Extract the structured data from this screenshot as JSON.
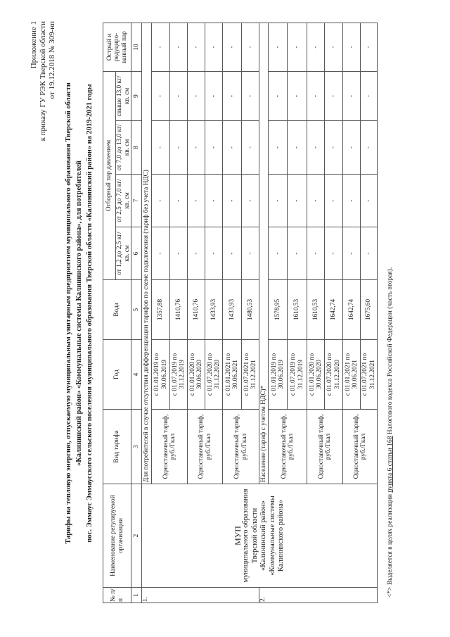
{
  "appendix": {
    "line1": "Приложение 1",
    "line2": "к приказу ГУ РЭК Тверской области",
    "line3": "от 19.12.2018 № 309-нп"
  },
  "title": {
    "line1": "Тарифы на тепловую энергию, отпускаемую муниципальным унитарным предприятием муниципального образования Тверской области",
    "line2": "«Калининский район» «Коммунальные системы Калининского района», для потребителей",
    "line3": "пос. Эммаус Эммаусского сельского поселения муниципального образования Тверской области «Калининский район» на 2019-2021 годы"
  },
  "table": {
    "headers": {
      "num": "№ п/ п",
      "org": "Наименование регулируемой организации",
      "tariff_type": "Вид тарифа",
      "year": "Год",
      "water": "Вода",
      "steam_group": "Отборный пар давлением",
      "p1": "от 1,2 до 2,5 кг/кв. см",
      "p2": "от 2,5 до 7,0 кг/кв. см",
      "p3": "от 7,0 до 13,0 кг/кв. см",
      "p4": "свыше 13,0 кг/кв. см",
      "sharp": "Острый и редуциро-ванный пар"
    },
    "col_numbers": [
      "1",
      "2",
      "3",
      "4",
      "5",
      "6",
      "7",
      "8",
      "9",
      "10"
    ],
    "org_name": {
      "l1": "МУП",
      "l2": "муниципального образования Тверской области «Калининский район» «Коммунальные системы Калининского района»"
    },
    "sections": [
      {
        "num": "1.",
        "title": "Для потребителей в случае отсутствия дифференциации тарифов по схеме подключения (тариф без учета НДС)",
        "rows": [
          {
            "tariff": "Одноставочный тариф, руб./Гкал",
            "period": "с 01.01.2019 по 30.06.2019",
            "values": [
              "1357,88",
              "-",
              "-",
              "-",
              "-",
              "-"
            ]
          },
          {
            "period": "с 01.07.2019 по 31.12.2019",
            "values": [
              "1410,76",
              "-",
              "-",
              "-",
              "-",
              "-"
            ]
          },
          {
            "tariff": "Одноставочный тариф, руб./Гкал",
            "period": "с 01.01.2020 по 30.06.2020",
            "values": [
              "1410,76",
              "-",
              "-",
              "-",
              "-",
              "-"
            ]
          },
          {
            "period": "с 01.07.2020 по 31.12.2020",
            "values": [
              "1433,93",
              "-",
              "-",
              "-",
              "-",
              "-"
            ]
          },
          {
            "tariff": "Одноставочный тариф, руб./Гкал",
            "period": "с 01.01.2021 по 30.06.2021",
            "values": [
              "1433,93",
              "-",
              "-",
              "-",
              "-",
              "-"
            ]
          },
          {
            "period": "с 01.07.2021 по 31.12.2021",
            "values": [
              "1480,53",
              "-",
              "-",
              "-",
              "-",
              "-"
            ]
          }
        ]
      },
      {
        "num": "2.",
        "title": "Население (тариф с учетом НДС)*",
        "rows": [
          {
            "tariff": "Одноставочный тариф, руб./Гкал",
            "period": "с 01.01.2019 по 30.06.2019",
            "values": [
              "1578,95",
              "-",
              "-",
              "-",
              "-",
              "-"
            ]
          },
          {
            "period": "с 01.07.2019 по 31.12.2019",
            "values": [
              "1610,53",
              "-",
              "-",
              "-",
              "-",
              "-"
            ]
          },
          {
            "tariff": "Одноставочный тариф, руб./Гкал",
            "period": "с 01.01.2020 по 30.06.2020",
            "values": [
              "1610,53",
              "-",
              "-",
              "-",
              "-",
              "-"
            ]
          },
          {
            "period": "с 01.07.2020 по 31.12.2020",
            "values": [
              "1642,74",
              "-",
              "-",
              "-",
              "-",
              "-"
            ]
          },
          {
            "tariff": "Одноставочный тариф, руб./Гкал",
            "period": "с 01.01.2021 по 30.06.2021",
            "values": [
              "1642,74",
              "-",
              "-",
              "-",
              "-",
              "-"
            ]
          },
          {
            "period": "с 01.07.2021 по 31.12.2021",
            "values": [
              "1675,60",
              "-",
              "-",
              "-",
              "-",
              "-"
            ]
          }
        ]
      }
    ]
  },
  "footnote": {
    "prefix": "<*> Выделяется в целях реализации ",
    "link": "пункта 6 статьи 168",
    "suffix": " Налогового кодекса Российской Федерации (часть вторая)."
  }
}
